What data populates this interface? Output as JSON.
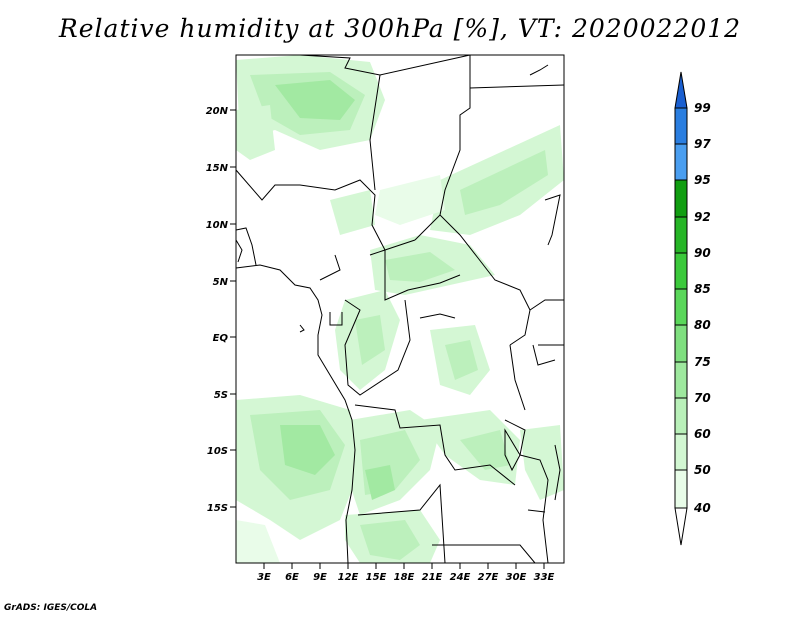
{
  "title": "Relative humidity at 300hPa [%], VT: 2020022012",
  "footer": "GrADS: IGES/COLA",
  "map": {
    "lat_labels": [
      "20N",
      "15N",
      "10N",
      "5N",
      "EQ",
      "5S",
      "10S",
      "15S"
    ],
    "lon_labels": [
      "3E",
      "6E",
      "9E",
      "12E",
      "15E",
      "18E",
      "21E",
      "24E",
      "27E",
      "30E",
      "33E"
    ]
  },
  "colorbar": {
    "levels": [
      "40",
      "50",
      "60",
      "70",
      "75",
      "80",
      "85",
      "90",
      "92",
      "95",
      "97",
      "99"
    ],
    "colors": [
      "#ffffff",
      "#e8fce8",
      "#d2f7d2",
      "#b9f0b9",
      "#9ee89e",
      "#7fdf7f",
      "#5ad75a",
      "#3bc93b",
      "#26b526",
      "#119e11",
      "#4a9ef0",
      "#2a7ee0",
      "#1a5fd0"
    ]
  }
}
